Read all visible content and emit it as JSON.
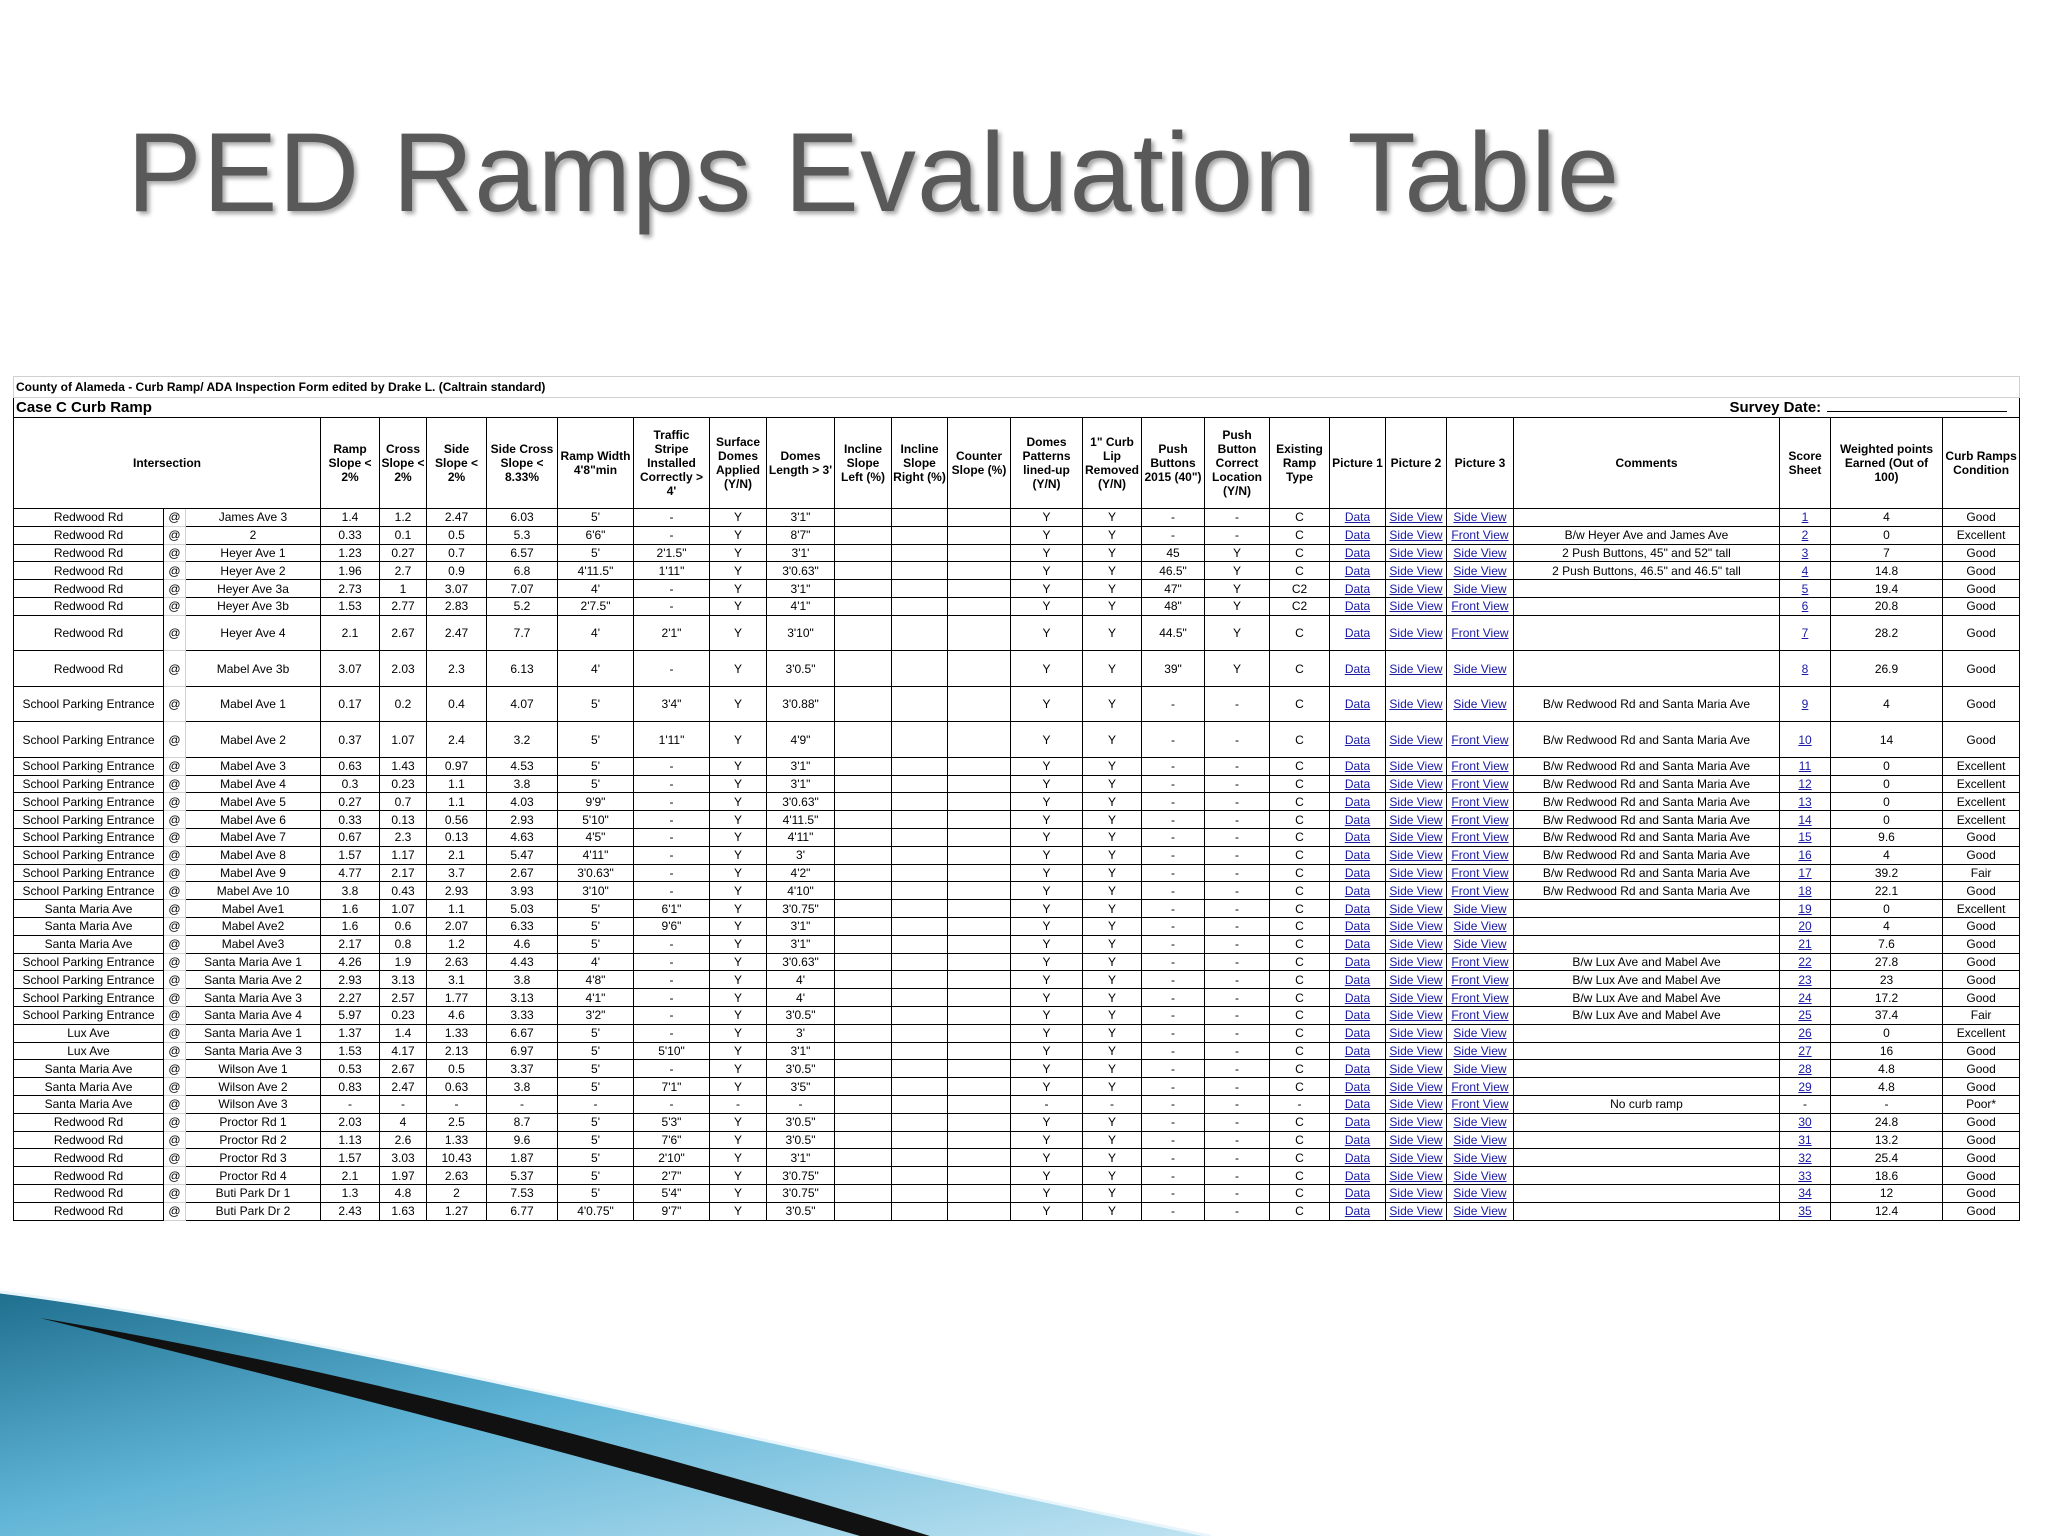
{
  "title": "PED Ramps Evaluation Table",
  "table": {
    "form_title": "County of Alameda - Curb Ramp/ ADA Inspection Form edited by Drake L. (Caltrain standard)",
    "case": "Case C Curb Ramp",
    "survey_date_label": "Survey Date:",
    "header": [
      "Intersection",
      "Ramp Slope < 2%",
      "Cross Slope < 2%",
      "Side Slope < 2%",
      "Side Cross Slope < 8.33%",
      "Ramp Width 4'8\"min",
      "Traffic Stripe Installed Correctly > 4'",
      "Surface Domes Applied (Y/N)",
      "Domes Length > 3'",
      "Incline Slope Left (%)",
      "Incline Slope Right (%)",
      "Counter Slope (%)",
      "Domes Patterns lined-up (Y/N)",
      "1\" Curb Lip Removed (Y/N)",
      "Push Buttons 2015 (40\")",
      "Push Button Correct Location (Y/N)",
      "Existing Ramp Type",
      "Picture 1",
      "Picture 2",
      "Picture 3",
      "Comments",
      "Score Sheet",
      "Weighted points Earned (Out of 100)",
      "Curb Ramps Condition"
    ],
    "rows": [
      [
        "Redwood Rd",
        "@",
        "James Ave 3",
        "1.4",
        "1.2",
        "2.47",
        "6.03",
        "5'",
        "-",
        "Y",
        "3'1\"",
        null,
        null,
        null,
        "Y",
        "Y",
        "-",
        "-",
        "C",
        "Data",
        "Side View",
        "Side View",
        null,
        "1",
        "4",
        "Good"
      ],
      [
        "Redwood Rd",
        "@",
        "2",
        "0.33",
        "0.1",
        "0.5",
        "5.3",
        "6'6\"",
        "-",
        "Y",
        "8'7\"",
        null,
        null,
        null,
        "Y",
        "Y",
        "-",
        "-",
        "C",
        "Data",
        "Side View",
        "Front View",
        "B/w Heyer Ave and James Ave",
        "2",
        "0",
        "Excellent"
      ],
      [
        "Redwood Rd",
        "@",
        "Heyer Ave 1",
        "1.23",
        "0.27",
        "0.7",
        "6.57",
        "5'",
        "2'1.5\"",
        "Y",
        "3'1'",
        null,
        null,
        null,
        "Y",
        "Y",
        "45",
        "Y",
        "C",
        "Data",
        "Side View",
        "Side View",
        "2 Push Buttons, 45\" and 52\" tall",
        "3",
        "7",
        "Good"
      ],
      [
        "Redwood Rd",
        "@",
        "Heyer Ave 2",
        "1.96",
        "2.7",
        "0.9",
        "6.8",
        "4'11.5\"",
        "1'11\"",
        "Y",
        "3'0.63\"",
        null,
        null,
        null,
        "Y",
        "Y",
        "46.5\"",
        "Y",
        "C",
        "Data",
        "Side View",
        "Side View",
        "2 Push Buttons, 46.5\" and 46.5\" tall",
        "4",
        "14.8",
        "Good"
      ],
      [
        "Redwood Rd",
        "@",
        "Heyer Ave 3a",
        "2.73",
        "1",
        "3.07",
        "7.07",
        "4'",
        "-",
        "Y",
        "3'1\"",
        null,
        null,
        null,
        "Y",
        "Y",
        "47\"",
        "Y",
        "C2",
        "Data",
        "Side View",
        "Side View",
        null,
        "5",
        "19.4",
        "Good"
      ],
      [
        "Redwood Rd",
        "@",
        "Heyer Ave 3b",
        "1.53",
        "2.77",
        "2.83",
        "5.2",
        "2'7.5\"",
        "-",
        "Y",
        "4'1\"",
        null,
        null,
        null,
        "Y",
        "Y",
        "48\"",
        "Y",
        "C2",
        "Data",
        "Side View",
        "Front View",
        null,
        "6",
        "20.8",
        "Good"
      ],
      [
        "Redwood Rd",
        "@",
        "Heyer Ave 4",
        "2.1",
        "2.67",
        "2.47",
        "7.7",
        "4'",
        "2'1\"",
        "Y",
        "3'10\"",
        null,
        null,
        null,
        "Y",
        "Y",
        "44.5\"",
        "Y",
        "C",
        "Data",
        "Side View",
        "Front View",
        null,
        "7",
        "28.2",
        "Good"
      ],
      [
        "Redwood Rd",
        "@",
        "Mabel Ave 3b",
        "3.07",
        "2.03",
        "2.3",
        "6.13",
        "4'",
        "-",
        "Y",
        "3'0.5\"",
        null,
        null,
        null,
        "Y",
        "Y",
        "39\"",
        "Y",
        "C",
        "Data",
        "Side View",
        "Side View",
        null,
        "8",
        "26.9",
        "Good"
      ],
      [
        "School Parking Entrance",
        "@",
        "Mabel Ave 1",
        "0.17",
        "0.2",
        "0.4",
        "4.07",
        "5'",
        "3'4\"",
        "Y",
        "3'0.88\"",
        null,
        null,
        null,
        "Y",
        "Y",
        "-",
        "-",
        "C",
        "Data",
        "Side View",
        "Side View",
        "B/w Redwood Rd and Santa Maria Ave",
        "9",
        "4",
        "Good"
      ],
      [
        "School Parking Entrance",
        "@",
        "Mabel Ave 2",
        "0.37",
        "1.07",
        "2.4",
        "3.2",
        "5'",
        "1'11\"",
        "Y",
        "4'9\"",
        null,
        null,
        null,
        "Y",
        "Y",
        "-",
        "-",
        "C",
        "Data",
        "Side View",
        "Front View",
        "B/w Redwood Rd and Santa Maria Ave",
        "10",
        "14",
        "Good"
      ],
      [
        "School Parking Entrance",
        "@",
        "Mabel Ave 3",
        "0.63",
        "1.43",
        "0.97",
        "4.53",
        "5'",
        "-",
        "Y",
        "3'1\"",
        null,
        null,
        null,
        "Y",
        "Y",
        "-",
        "-",
        "C",
        "Data",
        "Side View",
        "Front View",
        "B/w Redwood Rd and Santa Maria Ave",
        "11",
        "0",
        "Excellent"
      ],
      [
        "School Parking Entrance",
        "@",
        "Mabel Ave 4",
        "0.3",
        "0.23",
        "1.1",
        "3.8",
        "5'",
        "-",
        "Y",
        "3'1\"",
        null,
        null,
        null,
        "Y",
        "Y",
        "-",
        "-",
        "C",
        "Data",
        "Side View",
        "Front View",
        "B/w Redwood Rd and Santa Maria Ave",
        "12",
        "0",
        "Excellent"
      ],
      [
        "School Parking Entrance",
        "@",
        "Mabel Ave 5",
        "0.27",
        "0.7",
        "1.1",
        "4.03",
        "9'9\"",
        "-",
        "Y",
        "3'0.63\"",
        null,
        null,
        null,
        "Y",
        "Y",
        "-",
        "-",
        "C",
        "Data",
        "Side View",
        "Front View",
        "B/w Redwood Rd and Santa Maria Ave",
        "13",
        "0",
        "Excellent"
      ],
      [
        "School Parking Entrance",
        "@",
        "Mabel Ave 6",
        "0.33",
        "0.13",
        "0.56",
        "2.93",
        "5'10\"",
        "-",
        "Y",
        "4'11.5\"",
        null,
        null,
        null,
        "Y",
        "Y",
        "-",
        "-",
        "C",
        "Data",
        "Side View",
        "Front View",
        "B/w Redwood Rd and Santa Maria Ave",
        "14",
        "0",
        "Excellent"
      ],
      [
        "School Parking Entrance",
        "@",
        "Mabel Ave 7",
        "0.67",
        "2.3",
        "0.13",
        "4.63",
        "4'5\"",
        "-",
        "Y",
        "4'11\"",
        null,
        null,
        null,
        "Y",
        "Y",
        "-",
        "-",
        "C",
        "Data",
        "Side View",
        "Front View",
        "B/w Redwood Rd and Santa Maria Ave",
        "15",
        "9.6",
        "Good"
      ],
      [
        "School Parking Entrance",
        "@",
        "Mabel Ave 8",
        "1.57",
        "1.17",
        "2.1",
        "5.47",
        "4'11\"",
        "-",
        "Y",
        "3'",
        null,
        null,
        null,
        "Y",
        "Y",
        "-",
        "-",
        "C",
        "Data",
        "Side View",
        "Front View",
        "B/w Redwood Rd and Santa Maria Ave",
        "16",
        "4",
        "Good"
      ],
      [
        "School Parking Entrance",
        "@",
        "Mabel Ave 9",
        "4.77",
        "2.17",
        "3.7",
        "2.67",
        "3'0.63\"",
        "-",
        "Y",
        "4'2\"",
        null,
        null,
        null,
        "Y",
        "Y",
        "-",
        "-",
        "C",
        "Data",
        "Side View",
        "Front View",
        "B/w Redwood Rd and Santa Maria Ave",
        "17",
        "39.2",
        "Fair"
      ],
      [
        "School Parking Entrance",
        "@",
        "Mabel Ave 10",
        "3.8",
        "0.43",
        "2.93",
        "3.93",
        "3'10\"",
        "-",
        "Y",
        "4'10\"",
        null,
        null,
        null,
        "Y",
        "Y",
        "-",
        "-",
        "C",
        "Data",
        "Side View",
        "Front View",
        "B/w Redwood Rd and Santa Maria Ave",
        "18",
        "22.1",
        "Good"
      ],
      [
        "Santa Maria Ave",
        "@",
        "Mabel Ave1",
        "1.6",
        "1.07",
        "1.1",
        "5.03",
        "5'",
        "6'1\"",
        "Y",
        "3'0.75\"",
        null,
        null,
        null,
        "Y",
        "Y",
        "-",
        "-",
        "C",
        "Data",
        "Side View",
        "Side View",
        null,
        "19",
        "0",
        "Excellent"
      ],
      [
        "Santa Maria Ave",
        "@",
        "Mabel Ave2",
        "1.6",
        "0.6",
        "2.07",
        "6.33",
        "5'",
        "9'6\"",
        "Y",
        "3'1\"",
        null,
        null,
        null,
        "Y",
        "Y",
        "-",
        "-",
        "C",
        "Data",
        "Side View",
        "Side View",
        null,
        "20",
        "4",
        "Good"
      ],
      [
        "Santa Maria Ave",
        "@",
        "Mabel Ave3",
        "2.17",
        "0.8",
        "1.2",
        "4.6",
        "5'",
        "-",
        "Y",
        "3'1\"",
        null,
        null,
        null,
        "Y",
        "Y",
        "-",
        "-",
        "C",
        "Data",
        "Side View",
        "Side View",
        null,
        "21",
        "7.6",
        "Good"
      ],
      [
        "School Parking Entrance",
        "@",
        "Santa Maria Ave 1",
        "4.26",
        "1.9",
        "2.63",
        "4.43",
        "4'",
        "-",
        "Y",
        "3'0.63\"",
        null,
        null,
        null,
        "Y",
        "Y",
        "-",
        "-",
        "C",
        "Data",
        "Side View",
        "Front View",
        "B/w Lux Ave and Mabel Ave",
        "22",
        "27.8",
        "Good"
      ],
      [
        "School Parking Entrance",
        "@",
        "Santa Maria Ave 2",
        "2.93",
        "3.13",
        "3.1",
        "3.8",
        "4'8\"",
        "-",
        "Y",
        "4'",
        null,
        null,
        null,
        "Y",
        "Y",
        "-",
        "-",
        "C",
        "Data",
        "Side View",
        "Front View",
        "B/w Lux Ave and Mabel Ave",
        "23",
        "23",
        "Good"
      ],
      [
        "School Parking Entrance",
        "@",
        "Santa Maria Ave 3",
        "2.27",
        "2.57",
        "1.77",
        "3.13",
        "4'1\"",
        "-",
        "Y",
        "4'",
        null,
        null,
        null,
        "Y",
        "Y",
        "-",
        "-",
        "C",
        "Data",
        "Side View",
        "Front View",
        "B/w Lux Ave and Mabel Ave",
        "24",
        "17.2",
        "Good"
      ],
      [
        "School Parking Entrance",
        "@",
        "Santa Maria Ave 4",
        "5.97",
        "0.23",
        "4.6",
        "3.33",
        "3'2\"",
        "-",
        "Y",
        "3'0.5\"",
        null,
        null,
        null,
        "Y",
        "Y",
        "-",
        "-",
        "C",
        "Data",
        "Side View",
        "Front View",
        "B/w Lux Ave and Mabel Ave",
        "25",
        "37.4",
        "Fair"
      ],
      [
        "Lux Ave",
        "@",
        "Santa Maria Ave 1",
        "1.37",
        "1.4",
        "1.33",
        "6.67",
        "5'",
        "-",
        "Y",
        "3'",
        null,
        null,
        null,
        "Y",
        "Y",
        "-",
        "-",
        "C",
        "Data",
        "Side View",
        "Side View",
        null,
        "26",
        "0",
        "Excellent"
      ],
      [
        "Lux Ave",
        "@",
        "Santa Maria Ave 3",
        "1.53",
        "4.17",
        "2.13",
        "6.97",
        "5'",
        "5'10\"",
        "Y",
        "3'1\"",
        null,
        null,
        null,
        "Y",
        "Y",
        "-",
        "-",
        "C",
        "Data",
        "Side View",
        "Side View",
        null,
        "27",
        "16",
        "Good"
      ],
      [
        "Santa Maria Ave",
        "@",
        "Wilson Ave 1",
        "0.53",
        "2.67",
        "0.5",
        "3.37",
        "5'",
        "-",
        "Y",
        "3'0.5\"",
        null,
        null,
        null,
        "Y",
        "Y",
        "-",
        "-",
        "C",
        "Data",
        "Side View",
        "Side View",
        null,
        "28",
        "4.8",
        "Good"
      ],
      [
        "Santa Maria Ave",
        "@",
        "Wilson Ave 2",
        "0.83",
        "2.47",
        "0.63",
        "3.8",
        "5'",
        "7'1\"",
        "Y",
        "3'5\"",
        null,
        null,
        null,
        "Y",
        "Y",
        "-",
        "-",
        "C",
        "Data",
        "Side View",
        "Front View",
        null,
        "29",
        "4.8",
        "Good"
      ],
      [
        "Santa Maria Ave",
        "@",
        "Wilson Ave 3",
        "-",
        "-",
        "-",
        "-",
        "-",
        "-",
        "-",
        "-",
        null,
        null,
        null,
        "-",
        "-",
        "-",
        "-",
        "-",
        "Data",
        "Side View",
        "Front View",
        "No curb ramp",
        "-",
        "-",
        "Poor*"
      ],
      [
        "Redwood Rd",
        "@",
        "Proctor Rd 1",
        "2.03",
        "4",
        "2.5",
        "8.7",
        "5'",
        "5'3\"",
        "Y",
        "3'0.5\"",
        null,
        null,
        null,
        "Y",
        "Y",
        "-",
        "-",
        "C",
        "Data",
        "Side View",
        "Side View",
        null,
        "30",
        "24.8",
        "Good"
      ],
      [
        "Redwood Rd",
        "@",
        "Proctor Rd 2",
        "1.13",
        "2.6",
        "1.33",
        "9.6",
        "5'",
        "7'6\"",
        "Y",
        "3'0.5\"",
        null,
        null,
        null,
        "Y",
        "Y",
        "-",
        "-",
        "C",
        "Data",
        "Side View",
        "Side View",
        null,
        "31",
        "13.2",
        "Good"
      ],
      [
        "Redwood Rd",
        "@",
        "Proctor Rd 3",
        "1.57",
        "3.03",
        "10.43",
        "1.87",
        "5'",
        "2'10\"",
        "Y",
        "3'1\"",
        null,
        null,
        null,
        "Y",
        "Y",
        "-",
        "-",
        "C",
        "Data",
        "Side View",
        "Side View",
        null,
        "32",
        "25.4",
        "Good"
      ],
      [
        "Redwood Rd",
        "@",
        "Proctor Rd 4",
        "2.1",
        "1.97",
        "2.63",
        "5.37",
        "5'",
        "2'7\"",
        "Y",
        "3'0.75\"",
        null,
        null,
        null,
        "Y",
        "Y",
        "-",
        "-",
        "C",
        "Data",
        "Side View",
        "Side View",
        null,
        "33",
        "18.6",
        "Good"
      ],
      [
        "Redwood Rd",
        "@",
        "Buti Park Dr 1",
        "1.3",
        "4.8",
        "2",
        "7.53",
        "5'",
        "5'4\"",
        "Y",
        "3'0.75\"",
        null,
        null,
        null,
        "Y",
        "Y",
        "-",
        "-",
        "C",
        "Data",
        "Side View",
        "Side View",
        null,
        "34",
        "12",
        "Good"
      ],
      [
        "Redwood Rd",
        "@",
        "Buti Park Dr 2",
        "2.43",
        "1.63",
        "1.27",
        "6.77",
        "4'0.75\"",
        "9'7\"",
        "Y",
        "3'0.5\"",
        null,
        null,
        null,
        "Y",
        "Y",
        "-",
        "-",
        "C",
        "Data",
        "Side View",
        "Side View",
        null,
        "35",
        "12.4",
        "Good"
      ]
    ]
  }
}
